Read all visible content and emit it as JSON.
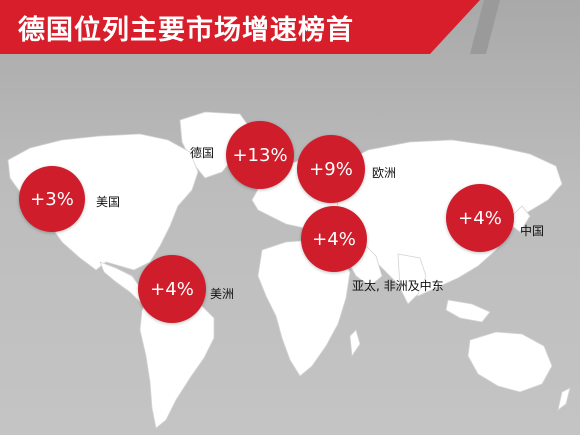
{
  "title": "德国位列主要市场增速榜首",
  "colors": {
    "accent": "#d81e2a",
    "land": "#ffffff",
    "water": "#b9b9b9"
  },
  "markets": [
    {
      "value": "+3%",
      "label": "美国"
    },
    {
      "value": "+13%",
      "label": "德国"
    },
    {
      "value": "+9%",
      "label": "欧洲"
    },
    {
      "value": "+4%",
      "label": "亚太, 非洲及中东"
    },
    {
      "value": "+4%",
      "label": "中国"
    },
    {
      "value": "+4%",
      "label": "美洲"
    }
  ]
}
